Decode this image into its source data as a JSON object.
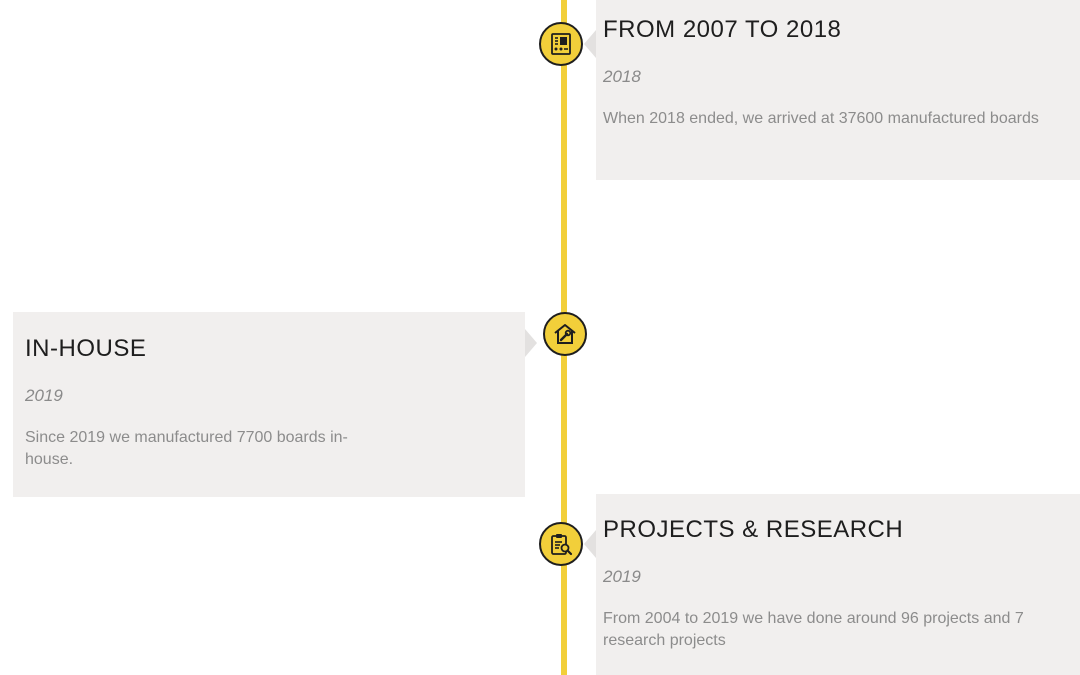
{
  "timeline": {
    "accent_color": "#f2cf3a",
    "items": [
      {
        "title": "FROM 2007 TO 2018",
        "date": "2018",
        "text": "When 2018 ended, we arrived at 37600 manufactured boards",
        "icon": "circuit-board-icon"
      },
      {
        "title": "IN-HOUSE",
        "date": "2019",
        "text": "Since 2019 we manufactured 7700 boards in-house.",
        "icon": "house-wrench-icon"
      },
      {
        "title": "PROJECTS & RESEARCH",
        "date": "2019",
        "text": "From 2004 to 2019 we have done around 96 projects and 7 research projects",
        "icon": "clipboard-search-icon"
      }
    ]
  }
}
